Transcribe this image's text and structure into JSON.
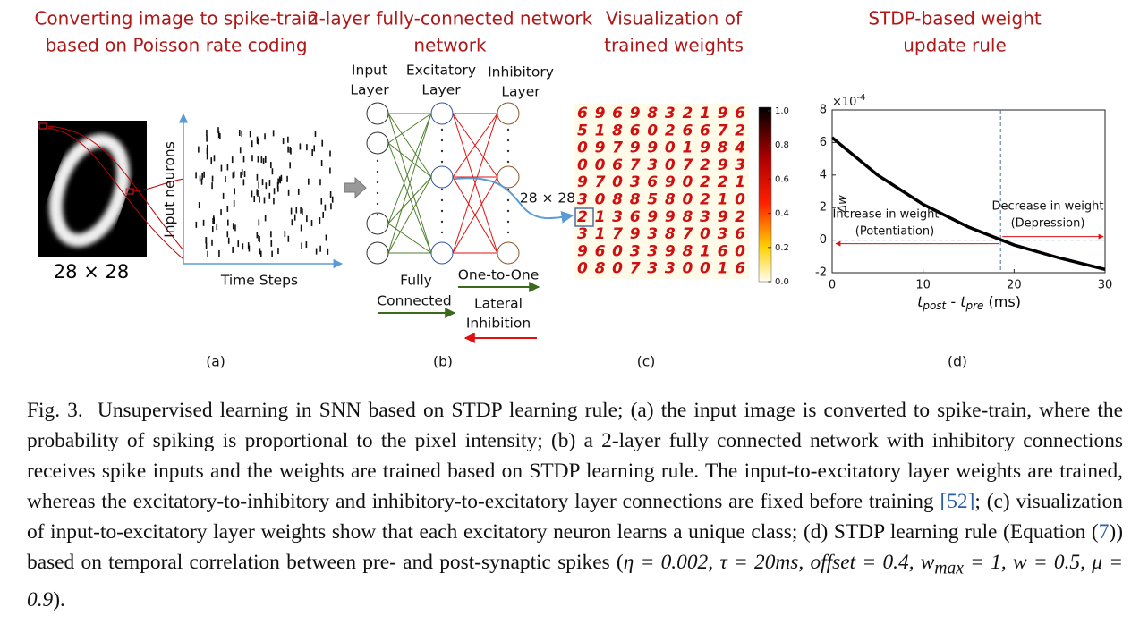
{
  "panel_a": {
    "title": [
      "Converting image to spike-train",
      "based on Poisson rate coding"
    ],
    "size": "28 × 28",
    "y_label": "Input neurons",
    "x_label": "Time Steps",
    "tag": "(a)"
  },
  "panel_b": {
    "title": [
      "2-layer fully-connected network"
    ],
    "title2": "network",
    "input_layer": [
      "Input",
      "Layer"
    ],
    "excitatory_layer": [
      "Excitatory",
      "Layer"
    ],
    "inhibitory_layer": [
      "Inhibitory",
      "Layer"
    ],
    "fully_connected": [
      "Fully",
      "Connected"
    ],
    "one_to_one": "One-to-One",
    "lateral_inhibition": [
      "Lateral",
      "Inhibition"
    ],
    "size": "28 × 28",
    "tag": "(b)"
  },
  "panel_c": {
    "title": [
      "Visualization of",
      "trained weights"
    ],
    "digits": [
      "6969832196",
      "5186026672",
      "0979901984",
      "0067307293",
      "9703690221",
      "3088580210",
      "2136998392",
      "3179387036",
      "9603398160",
      "0807330016"
    ],
    "colorbar_ticks": [
      {
        "value": 1,
        "label": "1.0"
      },
      {
        "value": 0.8,
        "label": "0.8"
      },
      {
        "value": 0.6,
        "label": "0.6"
      },
      {
        "value": 0.4,
        "label": "0.4"
      },
      {
        "value": 0.2,
        "label": "0.2"
      },
      {
        "value": 0,
        "label": "0.0"
      }
    ],
    "tag": "(c)"
  },
  "panel_d": {
    "title": [
      "STDP-based weight",
      "update rule"
    ],
    "exponent": "×10",
    "exponent_power": "-4",
    "y_label": "Δw",
    "x_label": [
      "t",
      "post",
      " - ",
      "t",
      "pre",
      " (ms)"
    ],
    "xlim": [
      0,
      30
    ],
    "ylim": [
      -2,
      8
    ],
    "xticks": [
      0,
      10,
      20,
      30
    ],
    "yticks": [
      -2,
      0,
      2,
      4,
      6,
      8
    ],
    "curve": {
      "x": [
        0,
        5,
        10,
        15,
        20,
        25,
        30
      ],
      "y": [
        6.3,
        4.0,
        2.2,
        0.8,
        -0.3,
        -1.1,
        -1.8
      ]
    },
    "increase": [
      "Increase in weight",
      "(Potentiation)"
    ],
    "decrease": [
      "Decrease in weight",
      "(Depression)"
    ],
    "tag": "(d)"
  },
  "caption": [
    "Fig. 3.",
    "Unsupervised learning in SNN based on STDP learning rule; (a) the input image is converted to spike-train, where the probability of spiking is proportional to the pixel intensity; (b) a 2-layer fully connected network with inhibitory connections receives spike inputs and the weights are trained based on STDP learning rule. The input-to-excitatory layer weights are trained, whereas the excitatory-to-inhibitory and inhibitory-to-excitatory layer connections are fixed before training ",
    "[52]",
    "; (c) visualization of input-to-excitatory layer weights show that each excitatory neuron learns a unique class; (d) STDP learning rule (Equation (",
    "7",
    ")) based on temporal correlation between pre- and post-synaptic spikes (",
    "η = 0.002, τ = 20ms, offset = 0.4, w",
    "max",
    " = 1, w = 0.5, μ = 0.9",
    ")."
  ]
}
